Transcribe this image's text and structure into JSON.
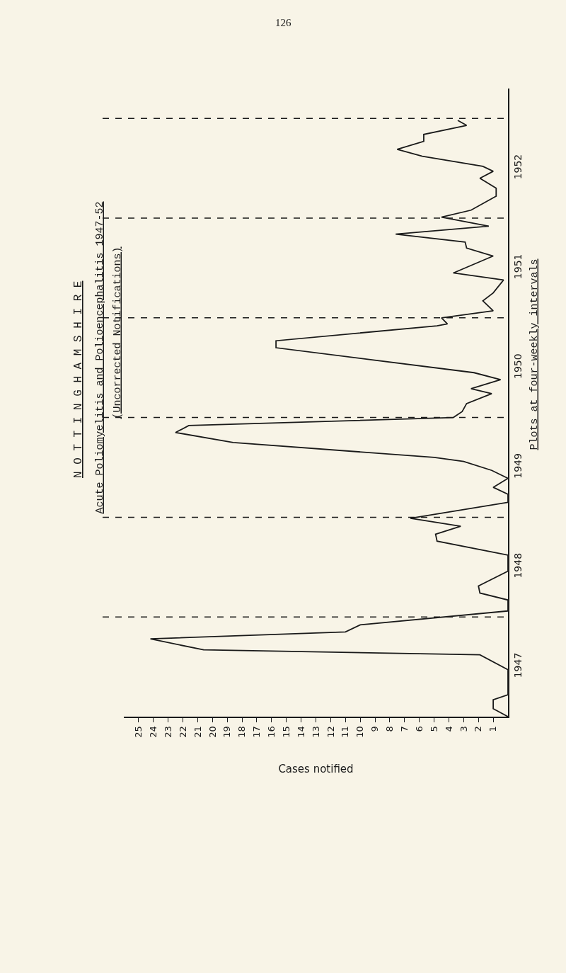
{
  "chart_data": {
    "type": "line",
    "orientation": "horizontal",
    "title": "Acute Poliomyelitis and Polioencephalitis 1947-52",
    "subtitle": "(Uncorrected Notifications)",
    "xlabel": "Cases notified",
    "annotations": [
      "126",
      "N O T T I N G H A M S H I R E",
      "Plots at four-weekly intervals"
    ],
    "x": [
      1947.0,
      1947.08,
      1947.17,
      1947.22,
      1947.47,
      1947.62,
      1947.67,
      1947.78,
      1947.85,
      1947.92,
      1948.06,
      1948.17,
      1948.24,
      1948.31,
      1948.46,
      1948.62,
      1948.76,
      1948.83,
      1948.91,
      1948.99,
      1949.15,
      1949.23,
      1949.3,
      1949.39,
      1949.47,
      1949.56,
      1949.6,
      1949.75,
      1949.85,
      1949.92,
      1950.0,
      1950.06,
      1950.14,
      1950.24,
      1950.29,
      1950.38,
      1950.45,
      1950.7,
      1950.77,
      1950.92,
      1950.94,
      1951.0,
      1951.07,
      1951.17,
      1951.25,
      1951.38,
      1951.45,
      1951.62,
      1951.7,
      1951.76,
      1951.84,
      1951.92,
      1952.01,
      1952.08,
      1952.22,
      1952.3,
      1952.4,
      1952.47,
      1952.52,
      1952.62,
      1952.69,
      1952.77,
      1952.84,
      1952.93,
      1952.98
    ],
    "series": [
      {
        "color": "#1a1a1a",
        "values": [
          0,
          1,
          1,
          0,
          0,
          1.9,
          20.6,
          24.2,
          11.0,
          10.0,
          0,
          0,
          1.9,
          2.0,
          0,
          0,
          4.8,
          4.9,
          3.2,
          6.6,
          0,
          0,
          1,
          0,
          1.1,
          3.0,
          5.0,
          18.6,
          22.5,
          21.6,
          3.7,
          3.1,
          2.8,
          1.1,
          2.5,
          0.5,
          2.3,
          15.7,
          15.7,
          4.8,
          4.1,
          4.5,
          1,
          1.7,
          1,
          0.3,
          3.7,
          1.0,
          2.8,
          2.9,
          7.6,
          1.3,
          4.5,
          2.5,
          0.8,
          0.8,
          1.9,
          1.0,
          1.7,
          5.8,
          7.5,
          5.7,
          5.7,
          2.8,
          3.4
        ]
      }
    ],
    "xlim": [
      26,
      0
    ],
    "xticks": [
      1,
      2,
      3,
      4,
      5,
      6,
      7,
      8,
      9,
      10,
      11,
      12,
      13,
      14,
      15,
      16,
      17,
      18,
      19,
      20,
      21,
      22,
      23,
      24,
      25
    ],
    "ylim": [
      1947,
      1953.3
    ],
    "yticks": [
      {
        "value": 1947.5,
        "label": "1947"
      },
      {
        "value": 1948.5,
        "label": "1948"
      },
      {
        "value": 1949.5,
        "label": "1949"
      },
      {
        "value": 1950.5,
        "label": "1950"
      },
      {
        "value": 1951.5,
        "label": "1951"
      },
      {
        "value": 1952.5,
        "label": "1952"
      }
    ],
    "ref_lines": [
      {
        "axis": "y",
        "value": 1948,
        "line_style": "dashed"
      },
      {
        "axis": "y",
        "value": 1949,
        "line_style": "dashed"
      },
      {
        "axis": "y",
        "value": 1950,
        "line_style": "dashed"
      },
      {
        "axis": "y",
        "value": 1951,
        "line_style": "dashed"
      },
      {
        "axis": "y",
        "value": 1952,
        "line_style": "dashed"
      },
      {
        "axis": "y",
        "value": 1953,
        "line_style": "dashed"
      }
    ],
    "grid": false,
    "marker": "none",
    "line_style": "solid"
  }
}
